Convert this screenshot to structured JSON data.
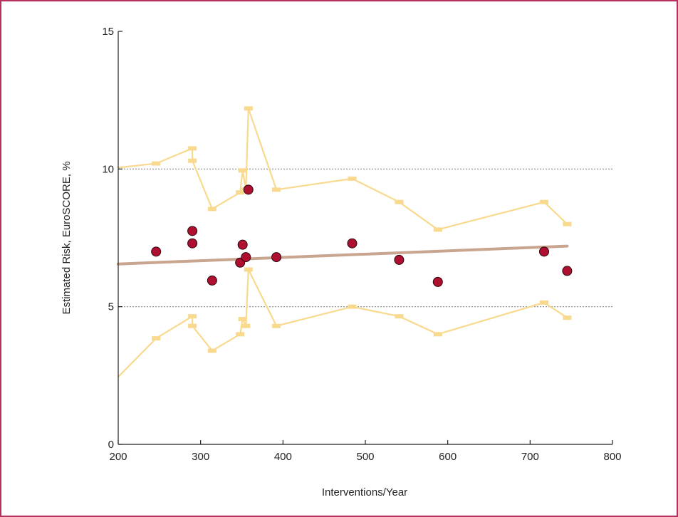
{
  "chart_data": {
    "type": "scatter",
    "xlabel": "Interventions/Year",
    "ylabel": "Estimated Risk, EuroSCORE, %",
    "xlim": [
      200,
      800
    ],
    "ylim": [
      0,
      15
    ],
    "xticks": [
      200,
      300,
      400,
      500,
      600,
      700,
      800
    ],
    "yticks": [
      0,
      5,
      10,
      15
    ],
    "reference_lines": [
      5,
      10
    ],
    "colors": {
      "points": "#b0102f",
      "trend": "#c9a48e",
      "band": "#f8d98e",
      "reference": "#888888",
      "frame": "#b5305f"
    },
    "points": [
      {
        "x": 246,
        "y": 7.0
      },
      {
        "x": 290,
        "y": 7.75
      },
      {
        "x": 290,
        "y": 7.3
      },
      {
        "x": 314,
        "y": 5.95
      },
      {
        "x": 348,
        "y": 6.6
      },
      {
        "x": 351,
        "y": 7.25
      },
      {
        "x": 355,
        "y": 6.8
      },
      {
        "x": 358,
        "y": 9.25
      },
      {
        "x": 392,
        "y": 6.8
      },
      {
        "x": 484,
        "y": 7.3
      },
      {
        "x": 541,
        "y": 6.7
      },
      {
        "x": 588,
        "y": 5.9
      },
      {
        "x": 717,
        "y": 7.0
      },
      {
        "x": 745,
        "y": 6.3
      }
    ],
    "trend_line": [
      {
        "x": 200,
        "y": 6.55
      },
      {
        "x": 745,
        "y": 7.2
      }
    ],
    "upper_limit": [
      {
        "x": 200,
        "y": 10.05
      },
      {
        "x": 246,
        "y": 10.2
      },
      {
        "x": 290,
        "y": 10.75
      },
      {
        "x": 290,
        "y": 10.3
      },
      {
        "x": 314,
        "y": 8.55
      },
      {
        "x": 348,
        "y": 9.15
      },
      {
        "x": 351,
        "y": 9.95
      },
      {
        "x": 355,
        "y": 9.25
      },
      {
        "x": 358,
        "y": 12.2
      },
      {
        "x": 392,
        "y": 9.25
      },
      {
        "x": 484,
        "y": 9.65
      },
      {
        "x": 541,
        "y": 8.8
      },
      {
        "x": 588,
        "y": 7.8
      },
      {
        "x": 717,
        "y": 8.8
      },
      {
        "x": 745,
        "y": 8.0
      }
    ],
    "lower_limit": [
      {
        "x": 200,
        "y": 2.45
      },
      {
        "x": 246,
        "y": 3.85
      },
      {
        "x": 290,
        "y": 4.65
      },
      {
        "x": 290,
        "y": 4.3
      },
      {
        "x": 314,
        "y": 3.4
      },
      {
        "x": 348,
        "y": 4.0
      },
      {
        "x": 351,
        "y": 4.55
      },
      {
        "x": 355,
        "y": 4.3
      },
      {
        "x": 358,
        "y": 6.35
      },
      {
        "x": 392,
        "y": 4.3
      },
      {
        "x": 484,
        "y": 5.0
      },
      {
        "x": 541,
        "y": 4.65
      },
      {
        "x": 588,
        "y": 4.0
      },
      {
        "x": 717,
        "y": 5.15
      },
      {
        "x": 745,
        "y": 4.6
      }
    ]
  }
}
